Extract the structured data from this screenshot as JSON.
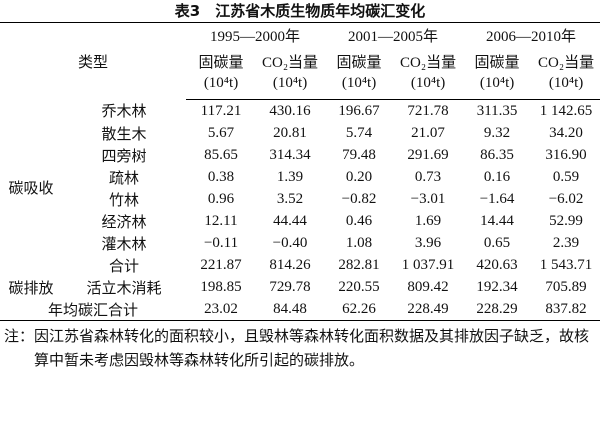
{
  "title": "表3　江苏省木质生物质年均碳汇变化",
  "header": {
    "type_label": "类型",
    "periods": [
      {
        "label": "1995—2000年",
        "columns": [
          {
            "name": "固碳量",
            "unit": "(10⁴t)"
          },
          {
            "name": "CO₂当量",
            "unit": "(10⁴t)"
          }
        ]
      },
      {
        "label": "2001—2005年",
        "columns": [
          {
            "name": "固碳量",
            "unit": "(10⁴t)"
          },
          {
            "name": "CO₂当量",
            "unit": "(10⁴t)"
          }
        ]
      },
      {
        "label": "2006—2010年",
        "columns": [
          {
            "name": "固碳量",
            "unit": "(10⁴t)"
          },
          {
            "name": "CO₂当量",
            "unit": "(10⁴t)"
          }
        ]
      }
    ]
  },
  "groups": [
    {
      "label": "碳吸收",
      "rows": [
        {
          "name": "乔木林",
          "values": [
            "117.21",
            "430.16",
            "196.67",
            "721.78",
            "311.35",
            "1 142.65"
          ]
        },
        {
          "name": "散生木",
          "values": [
            "5.67",
            "20.81",
            "5.74",
            "21.07",
            "9.32",
            "34.20"
          ]
        },
        {
          "name": "四旁树",
          "values": [
            "85.65",
            "314.34",
            "79.48",
            "291.69",
            "86.35",
            "316.90"
          ]
        },
        {
          "name": "疏林",
          "values": [
            "0.38",
            "1.39",
            "0.20",
            "0.73",
            "0.16",
            "0.59"
          ]
        },
        {
          "name": "竹林",
          "values": [
            "0.96",
            "3.52",
            "−0.82",
            "−3.01",
            "−1.64",
            "−6.02"
          ]
        },
        {
          "name": "经济林",
          "values": [
            "12.11",
            "44.44",
            "0.46",
            "1.69",
            "14.44",
            "52.99"
          ]
        },
        {
          "name": "灌木林",
          "values": [
            "−0.11",
            "−0.40",
            "1.08",
            "3.96",
            "0.65",
            "2.39"
          ]
        },
        {
          "name": "合计",
          "values": [
            "221.87",
            "814.26",
            "282.81",
            "1 037.91",
            "420.63",
            "1 543.71"
          ]
        }
      ]
    },
    {
      "label": "碳排放",
      "rows": [
        {
          "name": "活立木消耗",
          "values": [
            "198.85",
            "729.78",
            "220.55",
            "809.42",
            "192.34",
            "705.89"
          ]
        }
      ]
    }
  ],
  "total": {
    "label": "年均碳汇合计",
    "values": [
      "23.02",
      "84.48",
      "62.26",
      "228.49",
      "228.29",
      "837.82"
    ]
  },
  "note": "注：因江苏省森林转化的面积较小，且毁林等森林转化面积数据及其排放因子缺乏，故核算中暂未考虑因毁林等森林转化所引起的碳排放。"
}
